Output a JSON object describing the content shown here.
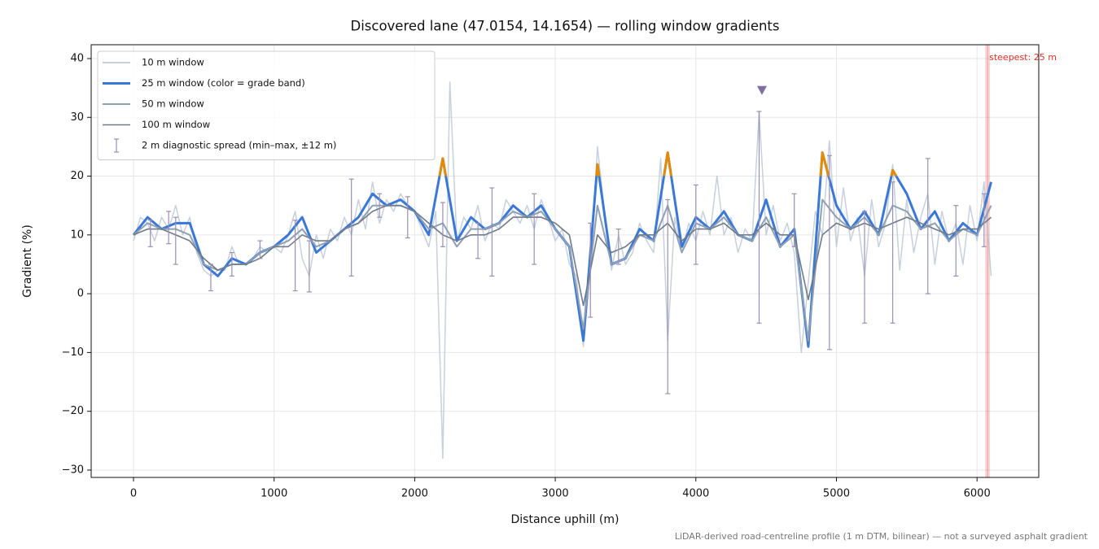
{
  "chart_data": {
    "type": "line",
    "title": "Discovered lane (47.0154, 14.1654) — rolling window gradients",
    "x_label": "Distance uphill (m)",
    "y_label": "Gradient (%)",
    "footnote": "LiDAR-derived road-centreline profile (1 m DTM, bilinear) — not a surveyed asphalt gradient",
    "xlim": [
      -301,
      6439
    ],
    "ylim": [
      -31.25,
      42.35
    ],
    "xticks": [
      0,
      1000,
      2000,
      3000,
      4000,
      5000,
      6000
    ],
    "yticks": [
      {
        "value": -30,
        "label": "−30"
      },
      {
        "value": -20,
        "label": "−20"
      },
      {
        "value": -10,
        "label": "−10"
      },
      0,
      10,
      20,
      30,
      40
    ],
    "grid": true,
    "legend": "upper left",
    "x": [
      0,
      100,
      200,
      300,
      400,
      500,
      600,
      700,
      800,
      900,
      1000,
      1100,
      1200,
      1300,
      1400,
      1500,
      1600,
      1700,
      1800,
      1900,
      2000,
      2100,
      2200,
      2300,
      2400,
      2500,
      2600,
      2700,
      2800,
      2900,
      3000,
      3100,
      3200,
      3300,
      3400,
      3500,
      3600,
      3700,
      3800,
      3900,
      4000,
      4100,
      4200,
      4300,
      4400,
      4500,
      4600,
      4700,
      4800,
      4900,
      5000,
      5100,
      5200,
      5300,
      5400,
      5500,
      5600,
      5700,
      5800,
      5900,
      6000,
      6100
    ],
    "series": [
      {
        "name": "10 m window",
        "color": "#b4c0d0",
        "width": 1.5,
        "x": [
          0,
          50,
          100,
          150,
          200,
          250,
          300,
          350,
          400,
          450,
          500,
          550,
          600,
          650,
          700,
          750,
          800,
          850,
          900,
          950,
          1000,
          1050,
          1100,
          1150,
          1200,
          1250,
          1300,
          1350,
          1400,
          1450,
          1500,
          1550,
          1600,
          1650,
          1700,
          1750,
          1800,
          1850,
          1900,
          1950,
          2000,
          2050,
          2100,
          2150,
          2200,
          2250,
          2300,
          2350,
          2400,
          2450,
          2500,
          2550,
          2600,
          2650,
          2700,
          2750,
          2800,
          2850,
          2900,
          2950,
          3000,
          3050,
          3100,
          3150,
          3200,
          3250,
          3300,
          3350,
          3400,
          3450,
          3500,
          3550,
          3600,
          3650,
          3700,
          3750,
          3800,
          3850,
          3900,
          3950,
          4000,
          4050,
          4100,
          4150,
          4200,
          4250,
          4300,
          4350,
          4400,
          4450,
          4500,
          4550,
          4600,
          4650,
          4700,
          4750,
          4800,
          4850,
          4900,
          4950,
          5000,
          5050,
          5100,
          5150,
          5200,
          5250,
          5300,
          5350,
          5400,
          5450,
          5500,
          5550,
          5600,
          5650,
          5700,
          5750,
          5800,
          5850,
          5900,
          5950,
          6000,
          6050,
          6100
        ],
        "values": [
          9,
          13,
          12,
          9,
          13,
          11,
          15,
          10,
          13,
          7,
          4,
          3,
          4,
          4,
          8,
          5,
          5,
          6,
          8,
          7,
          8,
          7,
          10,
          14,
          6,
          3,
          10,
          6,
          11,
          9,
          13,
          10,
          16,
          11,
          19,
          12,
          16,
          14,
          17,
          15,
          14,
          11,
          8,
          14,
          -28,
          36,
          9,
          13,
          11,
          15,
          9,
          12,
          11,
          16,
          14,
          12,
          15,
          11,
          16,
          13,
          9,
          11,
          5,
          3,
          -9,
          4,
          25,
          14,
          4,
          10,
          5,
          7,
          12,
          9,
          7,
          23,
          -8,
          13,
          7,
          12,
          9,
          14,
          10,
          20,
          10,
          13,
          7,
          11,
          9,
          31,
          10,
          15,
          9,
          12,
          7,
          -10,
          2,
          14,
          10,
          26,
          8,
          18,
          9,
          13,
          3,
          16,
          8,
          12,
          22,
          4,
          16,
          7,
          13,
          17,
          5,
          14,
          9,
          12,
          5,
          15,
          9,
          19,
          3
        ]
      },
      {
        "name": "25 m window (color = grade band)",
        "color": "#3a78d8",
        "width": 3,
        "highlight": {
          "above": 20,
          "color": "#e38b06"
        },
        "values": [
          10,
          13,
          11,
          12,
          12,
          5,
          3,
          6,
          5,
          7,
          8,
          10,
          13,
          7,
          9,
          11,
          13,
          17,
          15,
          16,
          14,
          10,
          23,
          9,
          13,
          11,
          12,
          15,
          13,
          15,
          11,
          8,
          -8,
          22,
          5,
          6,
          11,
          9,
          24,
          8,
          13,
          11,
          14,
          10,
          9,
          16,
          8,
          11,
          -9,
          24,
          15,
          11,
          14,
          10,
          21,
          17,
          11,
          14,
          9,
          12,
          10,
          19
        ]
      },
      {
        "name": "50 m window",
        "color": "#8fa0b4",
        "width": 2,
        "values": [
          10,
          12,
          11,
          11,
          10,
          5,
          4,
          5,
          5,
          7,
          8,
          9,
          11,
          8,
          9,
          11,
          12,
          15,
          15,
          15,
          14,
          11,
          12,
          8,
          11,
          11,
          12,
          14,
          13,
          14,
          11,
          8,
          -6,
          15,
          5,
          6,
          10,
          9,
          15,
          7,
          12,
          11,
          13,
          10,
          9,
          13,
          8,
          10,
          -8,
          16,
          13,
          11,
          13,
          10,
          15,
          14,
          11,
          12,
          9,
          11,
          10,
          15
        ]
      },
      {
        "name": "100 m window",
        "color": "#6f7b89",
        "width": 1.6,
        "values": [
          10,
          11,
          11,
          10,
          9,
          6,
          4,
          5,
          5,
          6,
          8,
          8,
          10,
          9,
          9,
          11,
          12,
          14,
          15,
          15,
          14,
          12,
          10,
          9,
          10,
          10,
          11,
          13,
          13,
          13,
          12,
          10,
          -2,
          10,
          7,
          8,
          10,
          10,
          12,
          9,
          11,
          11,
          12,
          10,
          10,
          12,
          10,
          10,
          -1,
          10,
          12,
          11,
          12,
          11,
          12,
          13,
          12,
          11,
          10,
          11,
          11,
          13
        ]
      }
    ],
    "errorbars": {
      "name": "2 m diagnostic spread (min–max, ±12 m)",
      "color": "#9a8fb5",
      "x": [
        120,
        250,
        300,
        550,
        700,
        900,
        1150,
        1250,
        1550,
        1750,
        1950,
        2200,
        2450,
        2550,
        2850,
        3250,
        3450,
        3800,
        4000,
        4450,
        4700,
        4950,
        5200,
        5400,
        5650,
        5850,
        6050
      ],
      "low": [
        8,
        8.5,
        5,
        0.5,
        3,
        6,
        0.5,
        0.3,
        3,
        13,
        9.5,
        8,
        6,
        3,
        5,
        -4,
        5,
        -17,
        5,
        -5,
        8,
        -9.5,
        -5,
        -5,
        0,
        3,
        8
      ],
      "high": [
        12.5,
        14,
        13,
        5,
        7,
        9,
        12.5,
        9,
        19.5,
        17,
        16.5,
        15.5,
        12,
        18,
        17,
        12,
        11,
        16,
        18.5,
        31,
        17,
        23.5,
        14,
        19,
        23,
        15,
        17
      ]
    },
    "marker": {
      "x": 4470,
      "y": 34.5,
      "color": "#7b70a0"
    },
    "steepest": {
      "x": 6075,
      "label": "steepest: 25 m",
      "color": "#d9342b"
    }
  }
}
